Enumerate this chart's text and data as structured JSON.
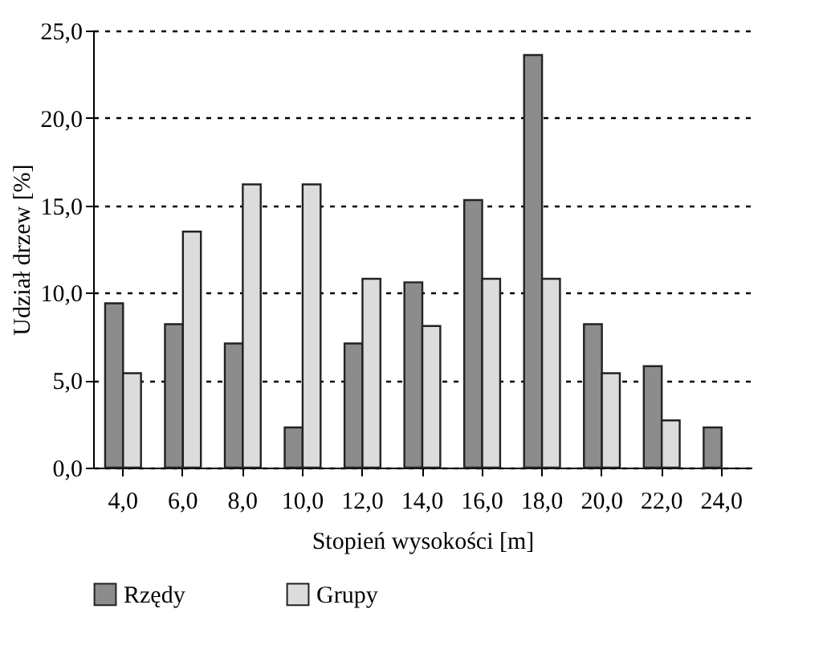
{
  "chart_data": {
    "type": "bar",
    "xlabel": "Stopień wysokości  [m]",
    "ylabel": "Udział drzew [%]",
    "categories": [
      "4,0",
      "6,0",
      "8,0",
      "10,0",
      "12,0",
      "14,0",
      "16,0",
      "18,0",
      "20,0",
      "22,0",
      "24,0"
    ],
    "series": [
      {
        "name": "Rzędy",
        "color": "#8c8c8c",
        "values": [
          9.4,
          8.2,
          7.1,
          2.3,
          7.1,
          10.6,
          15.3,
          23.6,
          8.2,
          5.8,
          2.3
        ]
      },
      {
        "name": "Grupy",
        "color": "#dcdcdc",
        "values": [
          5.4,
          13.5,
          16.2,
          16.2,
          10.8,
          8.1,
          10.8,
          10.8,
          5.4,
          2.7,
          null
        ]
      }
    ],
    "ylim": [
      0,
      25
    ],
    "yticks": [
      {
        "value": 0,
        "label": "0,0"
      },
      {
        "value": 5,
        "label": "5,0"
      },
      {
        "value": 10,
        "label": "10,0"
      },
      {
        "value": 15,
        "label": "15,0"
      },
      {
        "value": 20,
        "label": "20,0"
      },
      {
        "value": 25,
        "label": "25,0"
      }
    ],
    "grid": "y",
    "legend": "bottom"
  }
}
